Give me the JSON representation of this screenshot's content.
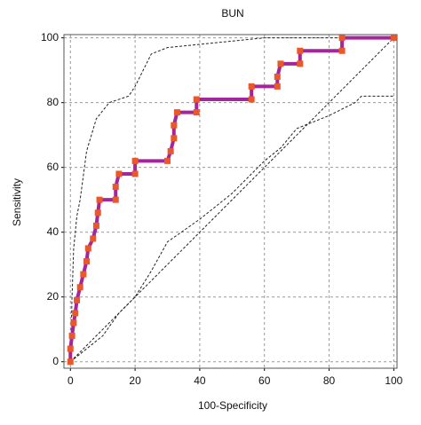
{
  "chart_data": {
    "type": "line",
    "title": "BUN",
    "xlabel": "100-Specificity",
    "ylabel": "Sensitivity",
    "xlim": [
      -2,
      101
    ],
    "ylim": [
      -2,
      101
    ],
    "xticks": [
      0,
      20,
      40,
      60,
      80,
      100
    ],
    "yticks": [
      0,
      20,
      40,
      60,
      80,
      100
    ],
    "grid": true,
    "series": [
      {
        "color": "#222222",
        "dash": true,
        "markers": false,
        "x": [
          0,
          100
        ],
        "values": [
          0,
          100
        ]
      },
      {
        "color": "#222222",
        "dash": true,
        "markers": false,
        "x": [
          0,
          0.5,
          1,
          2,
          3,
          5,
          8,
          12,
          18,
          20,
          25,
          30,
          40,
          60,
          100
        ],
        "values": [
          0,
          20,
          35,
          45,
          50,
          65,
          75,
          80,
          82,
          85,
          95,
          97,
          98,
          100,
          100
        ]
      },
      {
        "color": "#222222",
        "dash": true,
        "markers": false,
        "x": [
          0,
          10,
          15,
          20,
          25,
          30,
          40,
          50,
          55,
          60,
          65,
          70,
          80,
          88,
          90,
          100
        ],
        "values": [
          0,
          8,
          15,
          20,
          28,
          37,
          44,
          52,
          57,
          62,
          66,
          72,
          76,
          80,
          82,
          82
        ]
      },
      {
        "color": "#a3269a",
        "marker_color": "#e8582a",
        "dash": false,
        "markers": true,
        "x": [
          0,
          0,
          0.5,
          1,
          1.5,
          2,
          3,
          4,
          5,
          5.5,
          7,
          8,
          8.5,
          9,
          14,
          14,
          15,
          20,
          20,
          30,
          31,
          32,
          32,
          33,
          39,
          39,
          56,
          56,
          64,
          64,
          65,
          71,
          71,
          84,
          84,
          100
        ],
        "values": [
          0,
          4,
          8,
          12,
          15,
          19,
          23,
          27,
          31,
          35,
          38,
          42,
          46,
          50,
          50,
          54,
          58,
          58,
          62,
          62,
          65,
          69,
          73,
          77,
          77,
          81,
          81,
          85,
          85,
          88,
          92,
          92,
          96,
          96,
          100,
          100
        ]
      }
    ]
  }
}
